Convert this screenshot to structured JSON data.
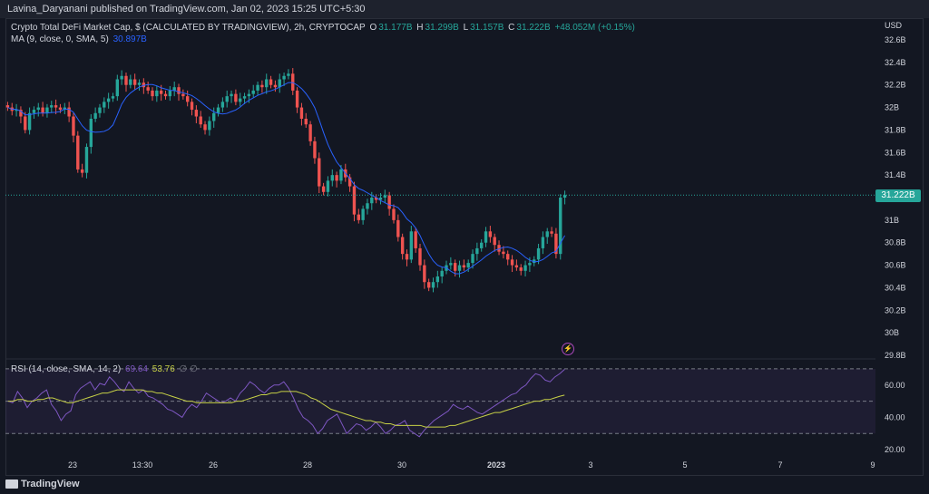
{
  "header": {
    "publisher": "Lavina_Daryanani published on TradingView.com, Jan 02, 2023 15:25 UTC+5:30"
  },
  "legend": {
    "symbol": "Crypto Total DeFi Market Cap, $ (CALCULATED BY TRADINGVIEW), 2h, CRYPTOCAP",
    "o_label": "O",
    "o_value": "31.177B",
    "h_label": "H",
    "h_value": "31.299B",
    "l_label": "L",
    "l_value": "31.157B",
    "c_label": "C",
    "c_value": "31.222B",
    "change": "+48.052M (+0.15%)",
    "ma_label": "MA (9, close, 0, SMA, 5)",
    "ma_value": "30.897B",
    "rsi_label": "RSI (14, close, SMA, 14, 2)",
    "rsi_value": "69.64",
    "rsi_ma_value": "53.76",
    "rsi_extra": "∅ ∅"
  },
  "price_tag": "31.222B",
  "lightning_icon": "lightning-icon",
  "brand": "TradingView",
  "colors": {
    "up": "#26a69a",
    "down": "#ef5350",
    "ma": "#2962ff",
    "rsi": "#7e57c2",
    "rsi_ma": "#c7d146"
  },
  "chart_data": [
    {
      "type": "candlestick",
      "title": "Crypto Total DeFi Market Cap",
      "ylabel": "USD",
      "y_ticks": [
        "32.6B",
        "32.4B",
        "32.2B",
        "32B",
        "31.8B",
        "31.6B",
        "31.4B",
        "31.2B",
        "31B",
        "30.8B",
        "30.6B",
        "30.4B",
        "30.2B",
        "30B",
        "29.8B"
      ],
      "ylim": [
        29.8,
        32.6
      ],
      "x_ticks": [
        "23",
        "13:30",
        "26",
        "28",
        "30",
        "2023",
        "3",
        "5",
        "7",
        "9"
      ],
      "close": [
        32.0,
        31.97,
        31.98,
        31.92,
        31.8,
        31.95,
        31.98,
        32.0,
        31.95,
        32.0,
        32.02,
        32.0,
        31.98,
        32.0,
        31.92,
        31.75,
        31.45,
        31.42,
        31.65,
        31.9,
        31.95,
        32.0,
        32.05,
        32.08,
        32.1,
        32.25,
        32.28,
        32.2,
        32.25,
        32.2,
        32.22,
        32.18,
        32.15,
        32.1,
        32.15,
        32.12,
        32.1,
        32.15,
        32.18,
        32.12,
        32.1,
        32.05,
        31.98,
        31.92,
        31.85,
        31.8,
        31.88,
        31.95,
        32.0,
        32.05,
        32.1,
        32.12,
        32.05,
        32.08,
        32.1,
        32.12,
        32.15,
        32.2,
        32.18,
        32.25,
        32.2,
        32.18,
        32.25,
        32.28,
        32.3,
        32.15,
        32.0,
        31.9,
        31.85,
        31.7,
        31.55,
        31.3,
        31.25,
        31.35,
        31.4,
        31.35,
        31.45,
        31.38,
        31.3,
        31.05,
        31.0,
        31.1,
        31.15,
        31.2,
        31.18,
        31.2,
        31.22,
        31.1,
        31.0,
        30.85,
        30.7,
        30.65,
        30.9,
        30.75,
        30.6,
        30.45,
        30.4,
        30.45,
        30.5,
        30.55,
        30.6,
        30.62,
        30.55,
        30.6,
        30.58,
        30.62,
        30.7,
        30.75,
        30.8,
        30.9,
        30.85,
        30.78,
        30.72,
        30.7,
        30.65,
        30.6,
        30.58,
        30.55,
        30.6,
        30.62,
        30.65,
        30.75,
        30.85,
        30.9,
        30.88,
        30.7,
        31.2,
        31.222
      ],
      "ma_label": "MA (9, close, 0, SMA, 5)"
    },
    {
      "type": "line",
      "title": "RSI (14, close, SMA, 14, 2)",
      "y_ticks": [
        "60.00",
        "40.00",
        "20.00"
      ],
      "ylim": [
        15,
        75
      ],
      "bands": [
        70,
        50,
        30
      ],
      "series": [
        {
          "name": "RSI",
          "values": [
            50,
            49,
            56,
            52,
            46,
            50,
            52,
            55,
            57,
            48,
            44,
            38,
            42,
            44,
            54,
            58,
            60,
            62,
            57,
            61,
            60,
            65,
            62,
            58,
            56,
            62,
            58,
            55,
            57,
            53,
            52,
            50,
            48,
            45,
            44,
            42,
            40,
            45,
            48,
            46,
            50,
            55,
            53,
            51,
            49,
            50,
            52,
            50,
            55,
            58,
            62,
            60,
            57,
            55,
            58,
            60,
            60,
            62,
            58,
            52,
            45,
            40,
            38,
            35,
            30,
            33,
            38,
            40,
            42,
            36,
            30,
            33,
            36,
            35,
            32,
            34,
            37,
            34,
            30,
            32,
            35,
            36,
            38,
            32,
            30,
            28,
            32,
            35,
            38,
            40,
            42,
            44,
            48,
            46,
            45,
            47,
            45,
            43,
            42,
            44,
            46,
            48,
            50,
            52,
            54,
            55,
            58,
            60,
            64,
            67,
            66,
            63,
            62,
            65,
            67,
            69.64
          ]
        },
        {
          "name": "RSI MA",
          "values": [
            50,
            50,
            51,
            51,
            50,
            50,
            51,
            51,
            52,
            52,
            51,
            50,
            49,
            49,
            50,
            51,
            52,
            53,
            54,
            55,
            55,
            56,
            57,
            57,
            57,
            57,
            57,
            57,
            56,
            56,
            55,
            55,
            54,
            53,
            52,
            51,
            50,
            50,
            49,
            49,
            49,
            49,
            49,
            49,
            49,
            49,
            50,
            50,
            51,
            52,
            53,
            54,
            54,
            55,
            55,
            56,
            56,
            56,
            56,
            55,
            54,
            52,
            51,
            49,
            47,
            45,
            44,
            43,
            42,
            41,
            40,
            39,
            38,
            38,
            37,
            37,
            36,
            36,
            35,
            35,
            35,
            35,
            35,
            35,
            34,
            34,
            34,
            34,
            34,
            35,
            35,
            36,
            37,
            38,
            39,
            40,
            41,
            42,
            43,
            43,
            44,
            45,
            46,
            47,
            48,
            49,
            50,
            50,
            51,
            51,
            52,
            53,
            53.76
          ]
        }
      ]
    }
  ]
}
